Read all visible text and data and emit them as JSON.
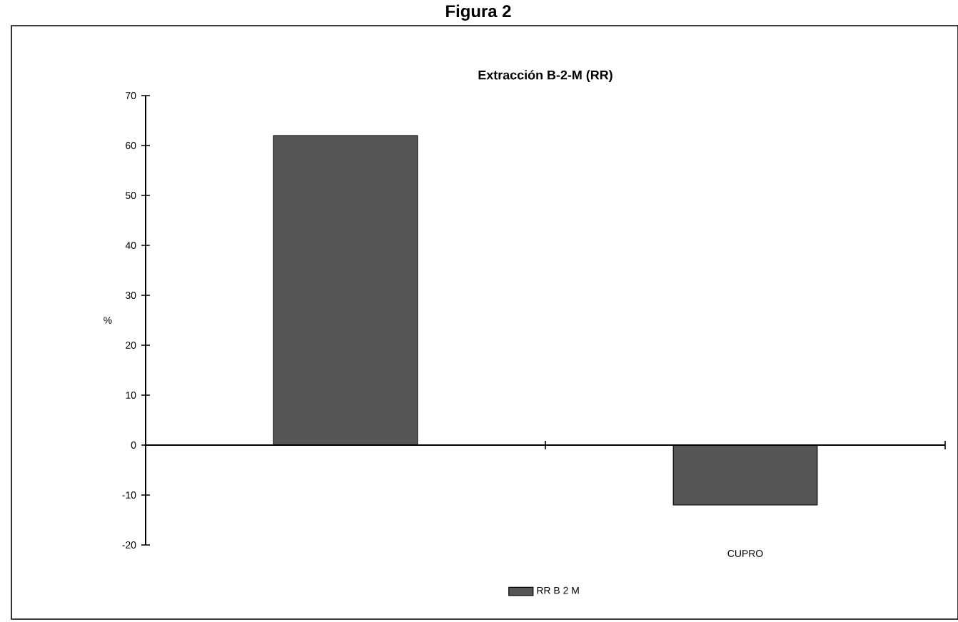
{
  "chart_data": {
    "type": "bar",
    "title": "Extracción B-2-M (RR)",
    "annotations": [
      "Figura 2"
    ],
    "ylabel": "%",
    "categories": [
      null,
      "CUPRO"
    ],
    "series": [
      {
        "name": "RR B 2 M",
        "color": "#555555",
        "values": [
          62,
          -12
        ]
      }
    ],
    "ylim": [
      -20,
      70
    ],
    "yticks": [
      -20,
      -10,
      0,
      10,
      20,
      30,
      40,
      50,
      60,
      70
    ],
    "legend": "bottom"
  }
}
